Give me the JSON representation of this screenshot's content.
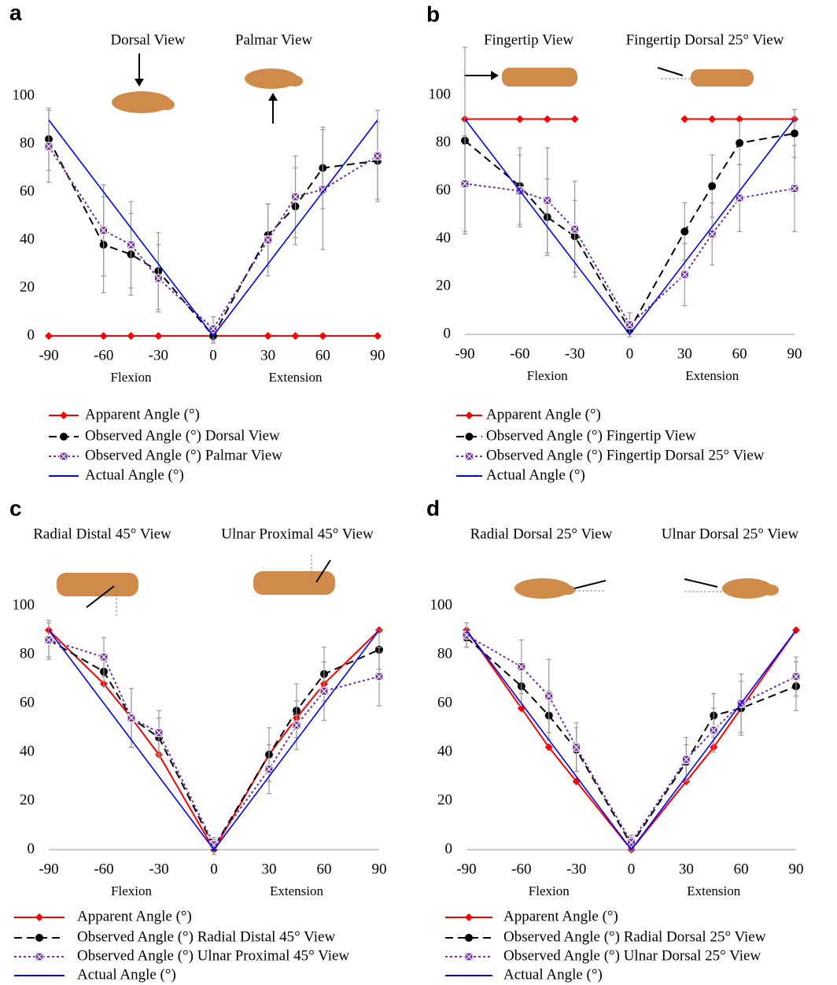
{
  "chart_data": [
    {
      "type": "line",
      "panel": "a",
      "annotations": [
        "Dorsal View",
        "Palmar View"
      ],
      "xlabels": [
        "Flexion",
        "Extension"
      ],
      "x": [
        -90,
        -60,
        -45,
        -30,
        0,
        30,
        45,
        60,
        90
      ],
      "xlim": [
        -90,
        90
      ],
      "xticks": [
        -90,
        -60,
        -30,
        0,
        30,
        60,
        90
      ],
      "ylim": [
        0,
        100
      ],
      "yticks": [
        0,
        20,
        40,
        60,
        80,
        100
      ],
      "grid": false,
      "series": [
        {
          "name": "Apparent Angle (°)",
          "color": "#ff0000",
          "style": "solid",
          "marker": "diamond",
          "values": [
            0,
            0,
            0,
            0,
            0,
            0,
            0,
            0,
            0
          ]
        },
        {
          "name": "Observed Angle (°) Dorsal View",
          "color": "#000000",
          "style": "dashed",
          "marker": "circle",
          "values": [
            82,
            38,
            34,
            27,
            0,
            42,
            54,
            70,
            73
          ],
          "errors": [
            13,
            20,
            17,
            16,
            3,
            13,
            16,
            17,
            16
          ]
        },
        {
          "name": "Observed Angle (°) Palmar View",
          "color": "#7030a0",
          "style": "dotted",
          "marker": "square-x",
          "values": [
            79,
            44,
            38,
            24,
            3,
            40,
            58,
            61,
            75
          ],
          "errors": [
            15,
            19,
            18,
            14,
            5,
            15,
            17,
            25,
            19
          ]
        },
        {
          "name": "Actual Angle (°)",
          "color": "#0000ff",
          "style": "solid",
          "marker": "none",
          "x": [
            -90,
            0,
            90
          ],
          "values": [
            90,
            0,
            90
          ]
        }
      ]
    },
    {
      "type": "line",
      "panel": "b",
      "annotations": [
        "Fingertip View",
        "Fingertip Dorsal 25° View"
      ],
      "xlabels": [
        "Flexion",
        "Extension"
      ],
      "x": [
        -90,
        -60,
        -45,
        -30,
        0,
        30,
        45,
        60,
        90
      ],
      "xlim": [
        -90,
        90
      ],
      "xticks": [
        -90,
        -60,
        -30,
        0,
        30,
        60,
        90
      ],
      "ylim": [
        0,
        100
      ],
      "yticks": [
        0,
        20,
        40,
        60,
        80,
        100
      ],
      "grid": false,
      "series": [
        {
          "name": "Apparent Angle (°)",
          "color": "#ff0000",
          "style": "solid",
          "marker": "diamond",
          "values": [
            90,
            90,
            90,
            90,
            null,
            90,
            90,
            90,
            90
          ]
        },
        {
          "name": "Observed Angle (°) Fingertip View",
          "color": "#000000",
          "style": "dashed",
          "marker": "circle",
          "values": [
            81,
            62,
            49,
            41,
            2,
            43,
            62,
            80,
            84
          ],
          "errors": [
            39,
            16,
            16,
            15,
            3,
            12,
            13,
            9,
            10
          ]
        },
        {
          "name": "Observed Angle (°) Fingertip Dorsal 25° View",
          "color": "#7030a0",
          "style": "dotted",
          "marker": "square-x",
          "values": [
            63,
            60,
            56,
            44,
            4,
            25,
            42,
            57,
            61
          ],
          "errors": [
            20,
            15,
            22,
            20,
            5,
            13,
            13,
            14,
            18
          ]
        },
        {
          "name": "Actual Angle (°)",
          "color": "#0000ff",
          "style": "solid",
          "marker": "none",
          "x": [
            -90,
            0,
            90
          ],
          "values": [
            90,
            0,
            90
          ]
        }
      ]
    },
    {
      "type": "line",
      "panel": "c",
      "annotations": [
        "Radial Distal 45° View",
        "Ulnar Proximal 45° View"
      ],
      "xlabels": [
        "Flexion",
        "Extension"
      ],
      "x": [
        -90,
        -60,
        -45,
        -30,
        0,
        30,
        45,
        60,
        90
      ],
      "xlim": [
        -90,
        90
      ],
      "xticks": [
        -90,
        -60,
        -30,
        0,
        30,
        60,
        90
      ],
      "ylim": [
        0,
        100
      ],
      "yticks": [
        0,
        20,
        40,
        60,
        80,
        100
      ],
      "grid": false,
      "series": [
        {
          "name": "Apparent Angle (°)",
          "color": "#ff0000",
          "style": "solid",
          "marker": "diamond",
          "values": [
            90,
            68,
            54,
            39,
            0,
            39,
            54,
            68,
            90
          ]
        },
        {
          "name": "Observed Angle (°) Radial Distal 45° View",
          "color": "#000000",
          "style": "dashed",
          "marker": "circle",
          "values": [
            86,
            73,
            54,
            46,
            1,
            39,
            57,
            72,
            82
          ],
          "errors": [
            8,
            6,
            12,
            8,
            3,
            11,
            11,
            11,
            8
          ]
        },
        {
          "name": "Observed Angle (°) Ulnar Proximal 45° View",
          "color": "#7030a0",
          "style": "dotted",
          "marker": "square-x",
          "values": [
            86,
            79,
            54,
            48,
            2,
            33,
            51,
            65,
            71
          ],
          "errors": [
            7,
            8,
            12,
            9,
            3,
            10,
            10,
            12,
            12
          ]
        },
        {
          "name": "Actual Angle (°)",
          "color": "#0000ff",
          "style": "solid",
          "marker": "none",
          "x": [
            -90,
            0,
            90
          ],
          "values": [
            90,
            0,
            90
          ]
        }
      ]
    },
    {
      "type": "line",
      "panel": "d",
      "annotations": [
        "Radial Dorsal 25° View",
        "Ulnar Dorsal 25° View"
      ],
      "xlabels": [
        "Flexion",
        "Extension"
      ],
      "x": [
        -90,
        -60,
        -45,
        -30,
        0,
        30,
        45,
        60,
        90
      ],
      "xlim": [
        -90,
        90
      ],
      "xticks": [
        -90,
        -60,
        -30,
        0,
        30,
        60,
        90
      ],
      "ylim": [
        0,
        100
      ],
      "yticks": [
        0,
        20,
        40,
        60,
        80,
        100
      ],
      "grid": false,
      "series": [
        {
          "name": "Apparent Angle (°)",
          "color": "#ff0000",
          "style": "solid",
          "marker": "diamond",
          "values": [
            90,
            58,
            42,
            28,
            0,
            28,
            42,
            58,
            90
          ]
        },
        {
          "name": "Observed Angle (°) Radial Dorsal 25° View",
          "color": "#000000",
          "style": "dashed",
          "marker": "circle",
          "values": [
            87,
            67,
            55,
            41,
            2,
            36,
            55,
            58,
            67
          ],
          "errors": [
            4,
            8,
            10,
            9,
            3,
            7,
            9,
            11,
            10
          ]
        },
        {
          "name": "Observed Angle (°) Ulnar Dorsal 25° View",
          "color": "#7030a0",
          "style": "dotted",
          "marker": "square-x",
          "values": [
            88,
            75,
            63,
            42,
            3,
            37,
            49,
            60,
            71
          ],
          "errors": [
            5,
            11,
            15,
            10,
            3,
            9,
            9,
            12,
            8
          ]
        },
        {
          "name": "Actual Angle (°)",
          "color": "#0000ff",
          "style": "solid",
          "marker": "none",
          "x": [
            -90,
            0,
            90
          ],
          "values": [
            90,
            0,
            90
          ]
        }
      ]
    }
  ]
}
